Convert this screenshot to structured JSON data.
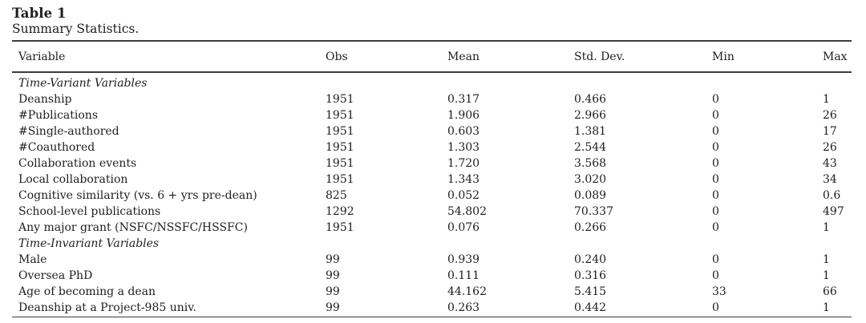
{
  "table": {
    "label": "Table 1",
    "caption": "Summary Statistics.",
    "columns": [
      "Variable",
      "Obs",
      "Mean",
      "Std. Dev.",
      "Min",
      "Max"
    ],
    "rows": [
      {
        "type": "section",
        "variable": "Time-Variant Variables",
        "obs": "",
        "mean": "",
        "std": "",
        "min": "",
        "max": ""
      },
      {
        "type": "data",
        "variable": "Deanship",
        "obs": "1951",
        "mean": "0.317",
        "std": "0.466",
        "min": "0",
        "max": "1"
      },
      {
        "type": "data",
        "variable": "#Publications",
        "obs": "1951",
        "mean": "1.906",
        "std": "2.966",
        "min": "0",
        "max": "26"
      },
      {
        "type": "data",
        "variable": "#Single-authored",
        "obs": "1951",
        "mean": "0.603",
        "std": "1.381",
        "min": "0",
        "max": "17"
      },
      {
        "type": "data",
        "variable": "#Coauthored",
        "obs": "1951",
        "mean": "1.303",
        "std": "2.544",
        "min": "0",
        "max": "26"
      },
      {
        "type": "data",
        "variable": "Collaboration events",
        "obs": "1951",
        "mean": "1.720",
        "std": "3.568",
        "min": "0",
        "max": "43"
      },
      {
        "type": "data",
        "variable": "Local collaboration",
        "obs": "1951",
        "mean": "1.343",
        "std": "3.020",
        "min": "0",
        "max": "34"
      },
      {
        "type": "data",
        "variable": "Cognitive similarity (vs. 6 + yrs pre-dean)",
        "obs": "825",
        "mean": "0.052",
        "std": "0.089",
        "min": "0",
        "max": "0.6"
      },
      {
        "type": "data",
        "variable": "School-level publications",
        "obs": "1292",
        "mean": "54.802",
        "std": "70.337",
        "min": "0",
        "max": "497"
      },
      {
        "type": "data",
        "variable": "Any major grant (NSFC/NSSFC/HSSFC)",
        "obs": "1951",
        "mean": "0.076",
        "std": "0.266",
        "min": "0",
        "max": "1"
      },
      {
        "type": "section",
        "variable": "Time-Invariant Variables",
        "obs": "",
        "mean": "",
        "std": "",
        "min": "",
        "max": ""
      },
      {
        "type": "data",
        "variable": "Male",
        "obs": "99",
        "mean": "0.939",
        "std": "0.240",
        "min": "0",
        "max": "1"
      },
      {
        "type": "data",
        "variable": "Oversea PhD",
        "obs": "99",
        "mean": "0.111",
        "std": "0.316",
        "min": "0",
        "max": "1"
      },
      {
        "type": "data",
        "variable": "Age of becoming a dean",
        "obs": "99",
        "mean": "44.162",
        "std": "5.415",
        "min": "33",
        "max": "66"
      },
      {
        "type": "data",
        "variable": "Deanship at a Project-985 univ.",
        "obs": "99",
        "mean": "0.263",
        "std": "0.442",
        "min": "0",
        "max": "1"
      }
    ]
  }
}
